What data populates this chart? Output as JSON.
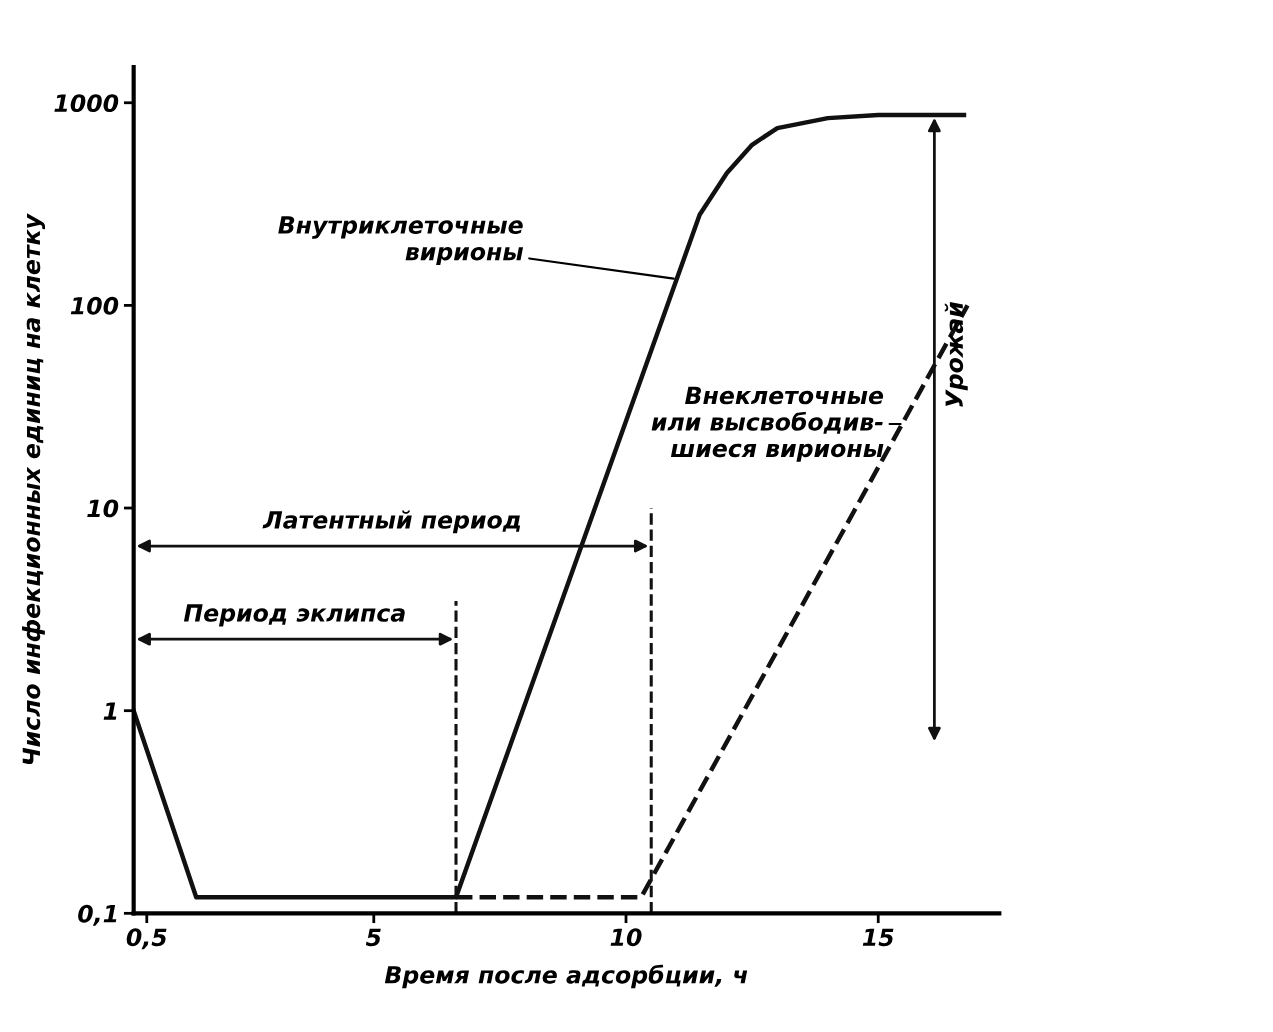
{
  "chart_data": {
    "type": "line",
    "xlabel": "Время после адсорбции, ч",
    "ylabel": "Число инфекционных единиц на клетку",
    "series": [
      {
        "color": "#111111",
        "line_style": "solid",
        "x": [
          0.24,
          1.48,
          6.63,
          11.46,
          12.0,
          12.5,
          13.0,
          14.0,
          15.0,
          16.7
        ],
        "values": [
          1,
          0.12,
          0.12,
          280,
          450,
          620,
          750,
          840,
          870,
          870
        ]
      },
      {
        "color": "#111111",
        "line_style": "dashed",
        "x": [
          6.63,
          10.3,
          16.77
        ],
        "values": [
          0.12,
          0.12,
          100
        ]
      }
    ],
    "log": "y",
    "xlim": [
      0.24,
      17.4
    ],
    "ylim": [
      0.1,
      1500
    ],
    "xticks": [
      {
        "value": 0.5,
        "label": "0,5"
      },
      5,
      10,
      15
    ],
    "yticks": [
      {
        "value": 0.1,
        "label": "0,1"
      },
      1,
      10,
      100,
      1000
    ],
    "ref_lines": [
      {
        "axis": "x",
        "value": 6.63,
        "label": null,
        "line_style": "dashed"
      },
      {
        "axis": "x",
        "value": 10.5,
        "label": null,
        "line_style": "dashed"
      }
    ],
    "annotations": [
      {
        "text": "Внутриклеточные\nвирионы",
        "x": 11.0,
        "y": 135
      },
      {
        "text": "Внеклеточные\nили высвободив-\nшиеся вирионы",
        "x": 15.5,
        "y": 26
      },
      "Период эклипса",
      "Латентный период",
      "Урожай"
    ],
    "grid": false
  }
}
